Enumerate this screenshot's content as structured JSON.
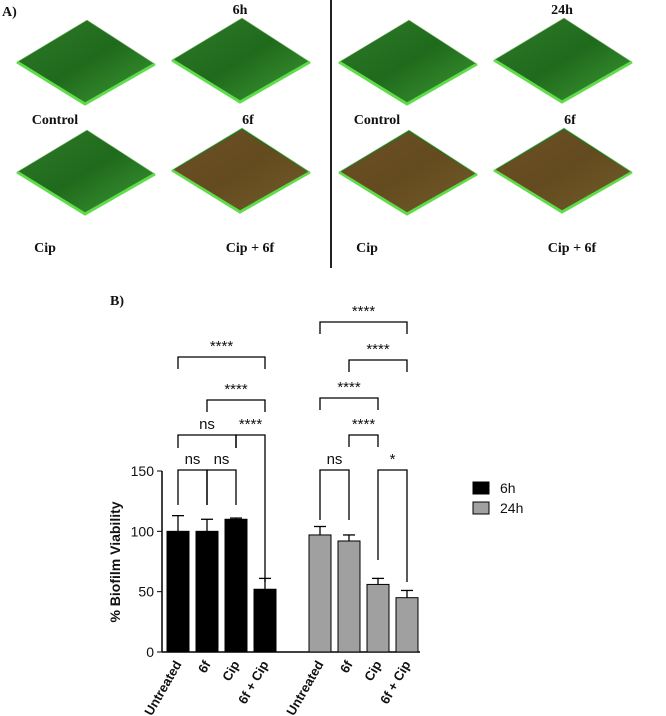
{
  "panel_a": {
    "label": "A)",
    "groups": [
      {
        "title": "6h",
        "images": [
          "Control",
          "6f",
          "Cip",
          "Cip + 6f"
        ]
      },
      {
        "title": "24h",
        "images": [
          "Control",
          "6f",
          "Cip",
          "Cip + 6f"
        ]
      }
    ]
  },
  "chart_data": {
    "type": "bar",
    "panel_label": "B)",
    "y_label": "% Biofilm Viability",
    "categories": [
      "Untreated",
      "6f",
      "Cip",
      "6f + Cip"
    ],
    "series": [
      {
        "name": "6h",
        "color": "#000000",
        "values": [
          100,
          100,
          110,
          52
        ],
        "errors": [
          13,
          10,
          1,
          9
        ]
      },
      {
        "name": "24h",
        "color": "#a0a0a0",
        "values": [
          97,
          92,
          56,
          45
        ],
        "errors": [
          7,
          5,
          5,
          6
        ]
      }
    ],
    "ylim": [
      0,
      150
    ],
    "yticks": [
      0,
      50,
      100,
      150
    ],
    "annotations": [
      "ns",
      "ns",
      "ns",
      "****",
      "****",
      "****",
      "ns",
      "*",
      "****",
      "****",
      "****",
      "****"
    ]
  }
}
